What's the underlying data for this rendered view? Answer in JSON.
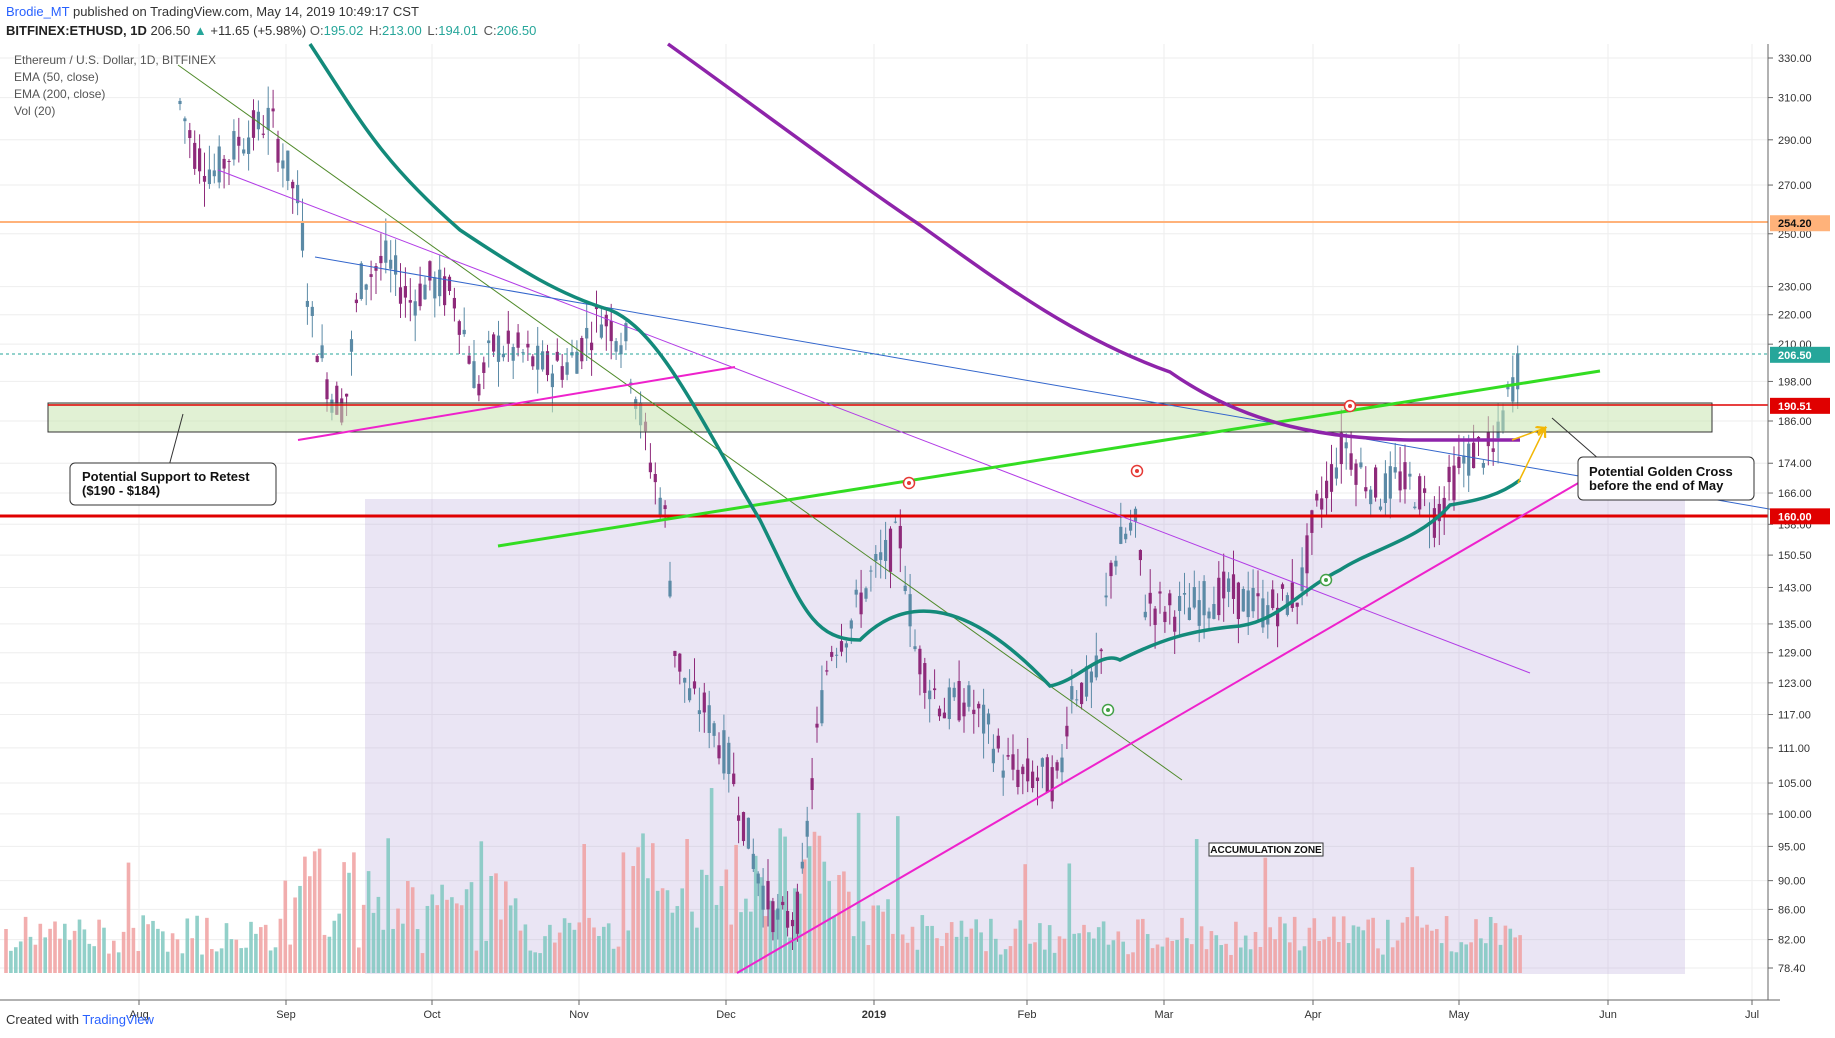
{
  "header": {
    "author": "Brodie_MT",
    "published": "published on TradingView.com, May 14, 2019 10:49:17 CST",
    "symbol": "BITFINEX:ETHUSD, 1D",
    "last": "206.50",
    "change": "+11.65 (+5.98%)",
    "o_label": "O:",
    "o_value": "195.02",
    "h_label": "H:",
    "h_value": "213.00",
    "l_label": "L:",
    "l_value": "194.01",
    "c_label": "C:",
    "c_value": "206.50"
  },
  "legend": [
    "Ethereum / U.S. Dollar, 1D, BITFINEX",
    "EMA (50, close)",
    "EMA (200, close)",
    "Vol (20)"
  ],
  "footer": {
    "created": "Created with",
    "brand": "TradingView"
  },
  "colors": {
    "up": "#26a69a",
    "down": "#ef5350",
    "ema50": "#138a7a",
    "ema200": "#8e24aa",
    "resistance": "#ffb27a",
    "support": "#e00000",
    "green_trend": "#33dd22",
    "magenta_trend": "#ee22cc"
  },
  "chart_data": {
    "type": "candlestick",
    "ylim": [
      78,
      335
    ],
    "y_scale": "log",
    "y_ticks": [
      "330.00",
      "310.00",
      "290.00",
      "270.00",
      "250.00",
      "230.00",
      "220.00",
      "210.00",
      "198.00",
      "186.00",
      "174.00",
      "166.00",
      "158.00",
      "150.50",
      "143.00",
      "135.00",
      "129.00",
      "123.00",
      "117.00",
      "111.00",
      "105.00",
      "100.00",
      "95.00",
      "90.00",
      "86.00",
      "82.00",
      "78.40"
    ],
    "x_ticks": [
      "Aug",
      "Sep",
      "Oct",
      "Nov",
      "Dec",
      "2019",
      "Feb",
      "Mar",
      "Apr",
      "May",
      "Jun",
      "Jul"
    ],
    "price_labels": [
      {
        "value": "254.20",
        "color": "#ffb27a"
      },
      {
        "value": "206.50",
        "color": "#26a69a"
      },
      {
        "value": "190.51",
        "color": "#e00000"
      },
      {
        "value": "160.00",
        "color": "#e00000"
      }
    ],
    "annotations": {
      "support_note": [
        "Potential Support to Retest",
        "($190 - $184)"
      ],
      "golden_cross_note": [
        "Potential Golden Cross",
        "before the end of May"
      ],
      "zone_label": "ACCUMULATION ZONE"
    },
    "series": [
      {
        "name": "EMA (50, close)",
        "approx_path": [
          [
            0.0,
            340
          ],
          [
            0.2,
            240
          ],
          [
            0.35,
            205
          ],
          [
            0.5,
            125
          ],
          [
            0.6,
            122
          ],
          [
            0.7,
            137
          ],
          [
            0.8,
            144
          ],
          [
            0.86,
            162
          ],
          [
            0.93,
            168
          ]
        ]
      },
      {
        "name": "EMA (200, close)",
        "approx_path": [
          [
            0.0,
            400
          ],
          [
            0.3,
            260
          ],
          [
            0.5,
            200
          ],
          [
            0.65,
            184
          ],
          [
            0.8,
            180
          ],
          [
            0.93,
            178
          ]
        ]
      }
    ]
  }
}
